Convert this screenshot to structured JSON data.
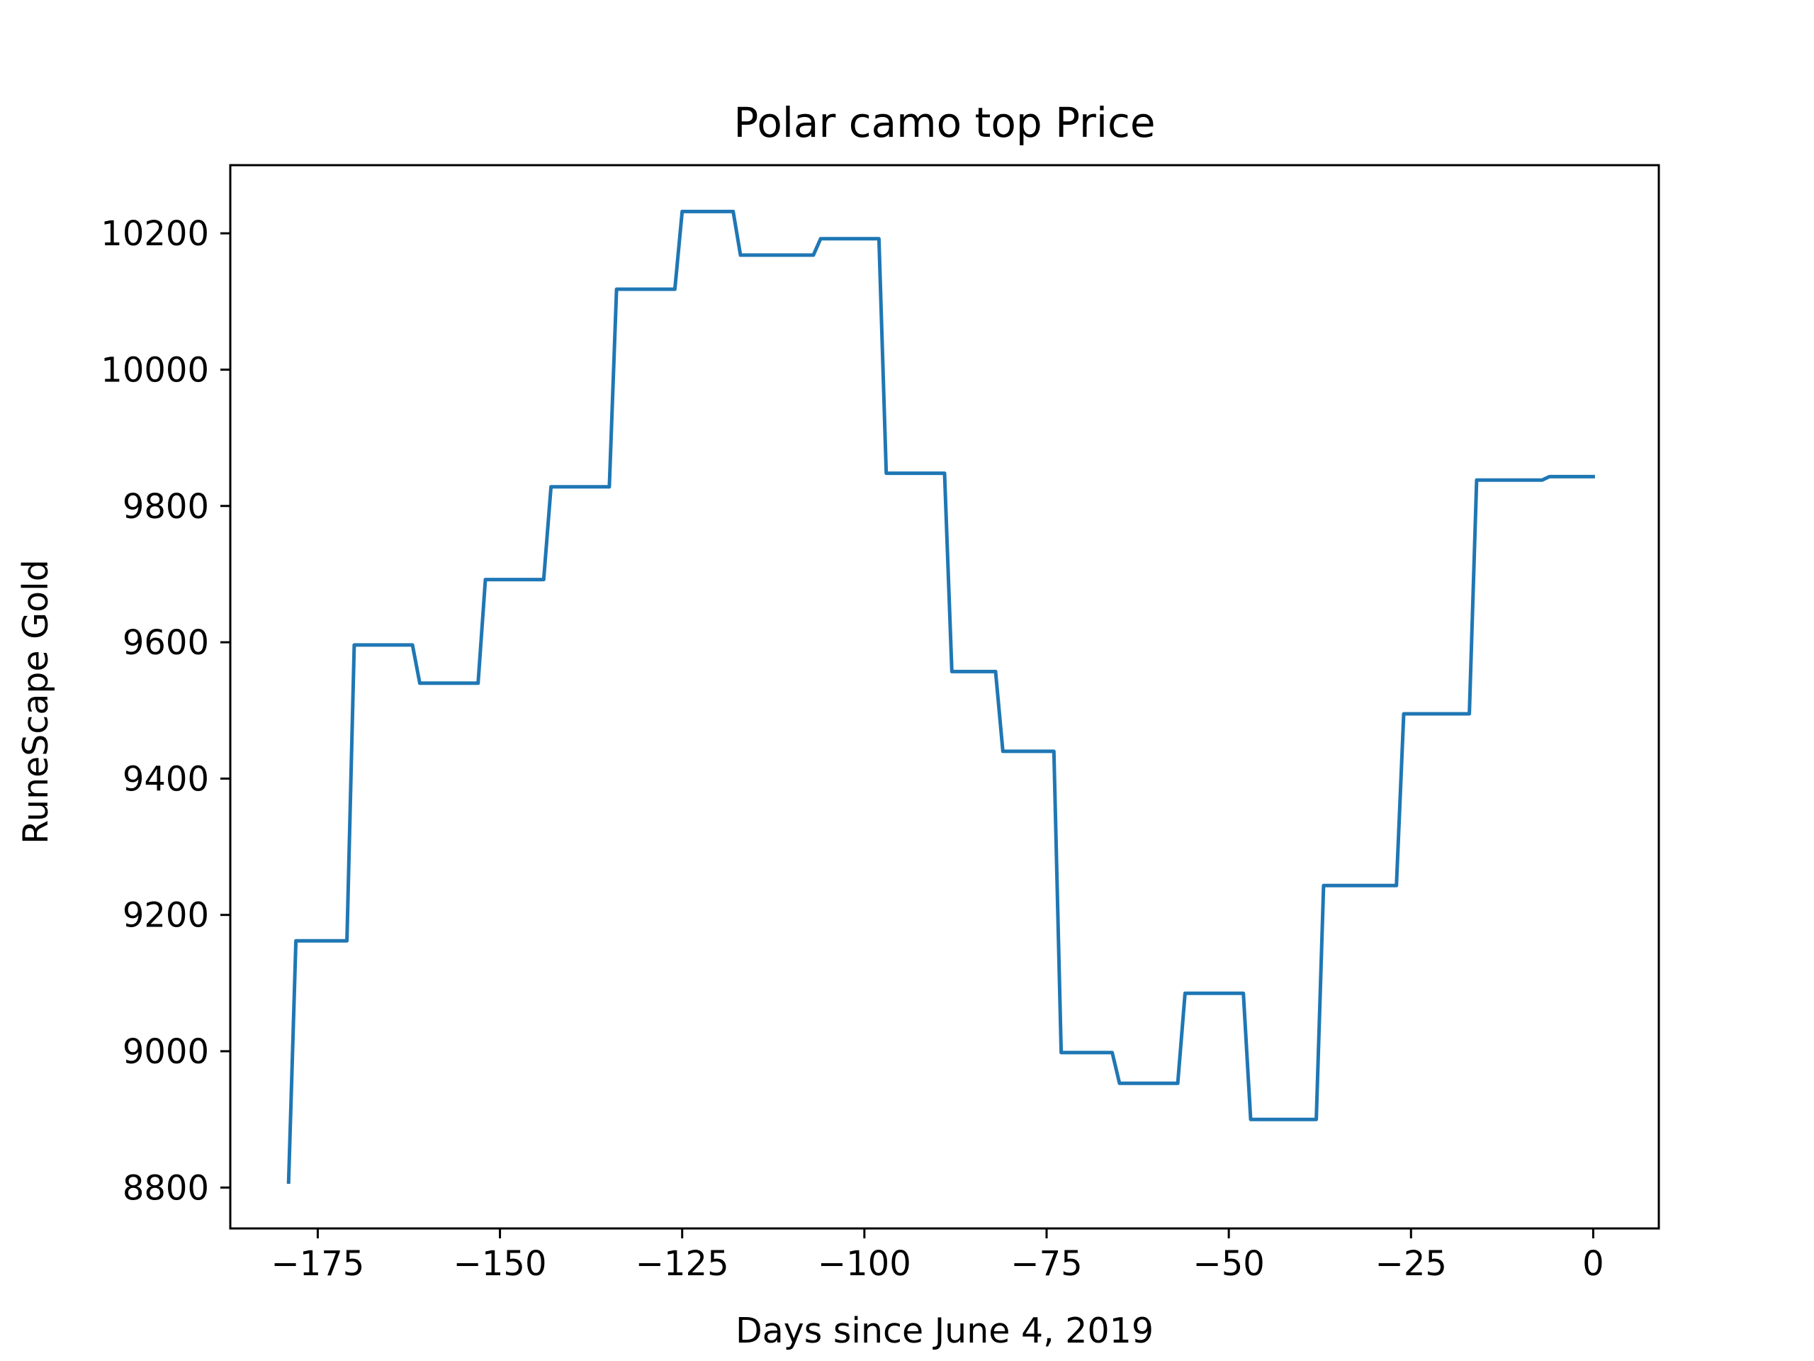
{
  "chart_data": {
    "type": "line",
    "title": "Polar camo top Price",
    "xlabel": "Days since June 4, 2019",
    "ylabel": "RuneScape Gold",
    "xlim": [
      -187,
      9
    ],
    "ylim": [
      8740,
      10300
    ],
    "x_ticks": [
      -175,
      -150,
      -125,
      -100,
      -75,
      -50,
      -25,
      0
    ],
    "x_tick_labels": [
      "−175",
      "−150",
      "−125",
      "−100",
      "−75",
      "−50",
      "−25",
      "0"
    ],
    "y_ticks": [
      8800,
      9000,
      9200,
      9400,
      9600,
      9800,
      10000,
      10200
    ],
    "y_tick_labels": [
      "8800",
      "9000",
      "9200",
      "9400",
      "9600",
      "9800",
      "10000",
      "10200"
    ],
    "grid": false,
    "legend": "none",
    "series": [
      {
        "color": "#1f77b4",
        "x": [
          -179,
          -178,
          -171,
          -170,
          -162,
          -161,
          -153,
          -152,
          -144,
          -143,
          -135,
          -134,
          -126,
          -125,
          -118,
          -117,
          -107,
          -106,
          -98,
          -97,
          -89,
          -88,
          -82,
          -81,
          -74,
          -73,
          -66,
          -65,
          -57,
          -56,
          -48,
          -47,
          -38,
          -37,
          -27,
          -26,
          -17,
          -16,
          -7,
          -6,
          0
        ],
        "y": [
          8808,
          9162,
          9162,
          9596,
          9596,
          9540,
          9540,
          9692,
          9692,
          9828,
          9828,
          10118,
          10118,
          10232,
          10232,
          10168,
          10168,
          10192,
          10192,
          9848,
          9848,
          9557,
          9557,
          9440,
          9440,
          8998,
          8998,
          8953,
          8953,
          9085,
          9085,
          8900,
          8900,
          9243,
          9243,
          9495,
          9495,
          9838,
          9838,
          9843,
          9843
        ]
      }
    ]
  }
}
